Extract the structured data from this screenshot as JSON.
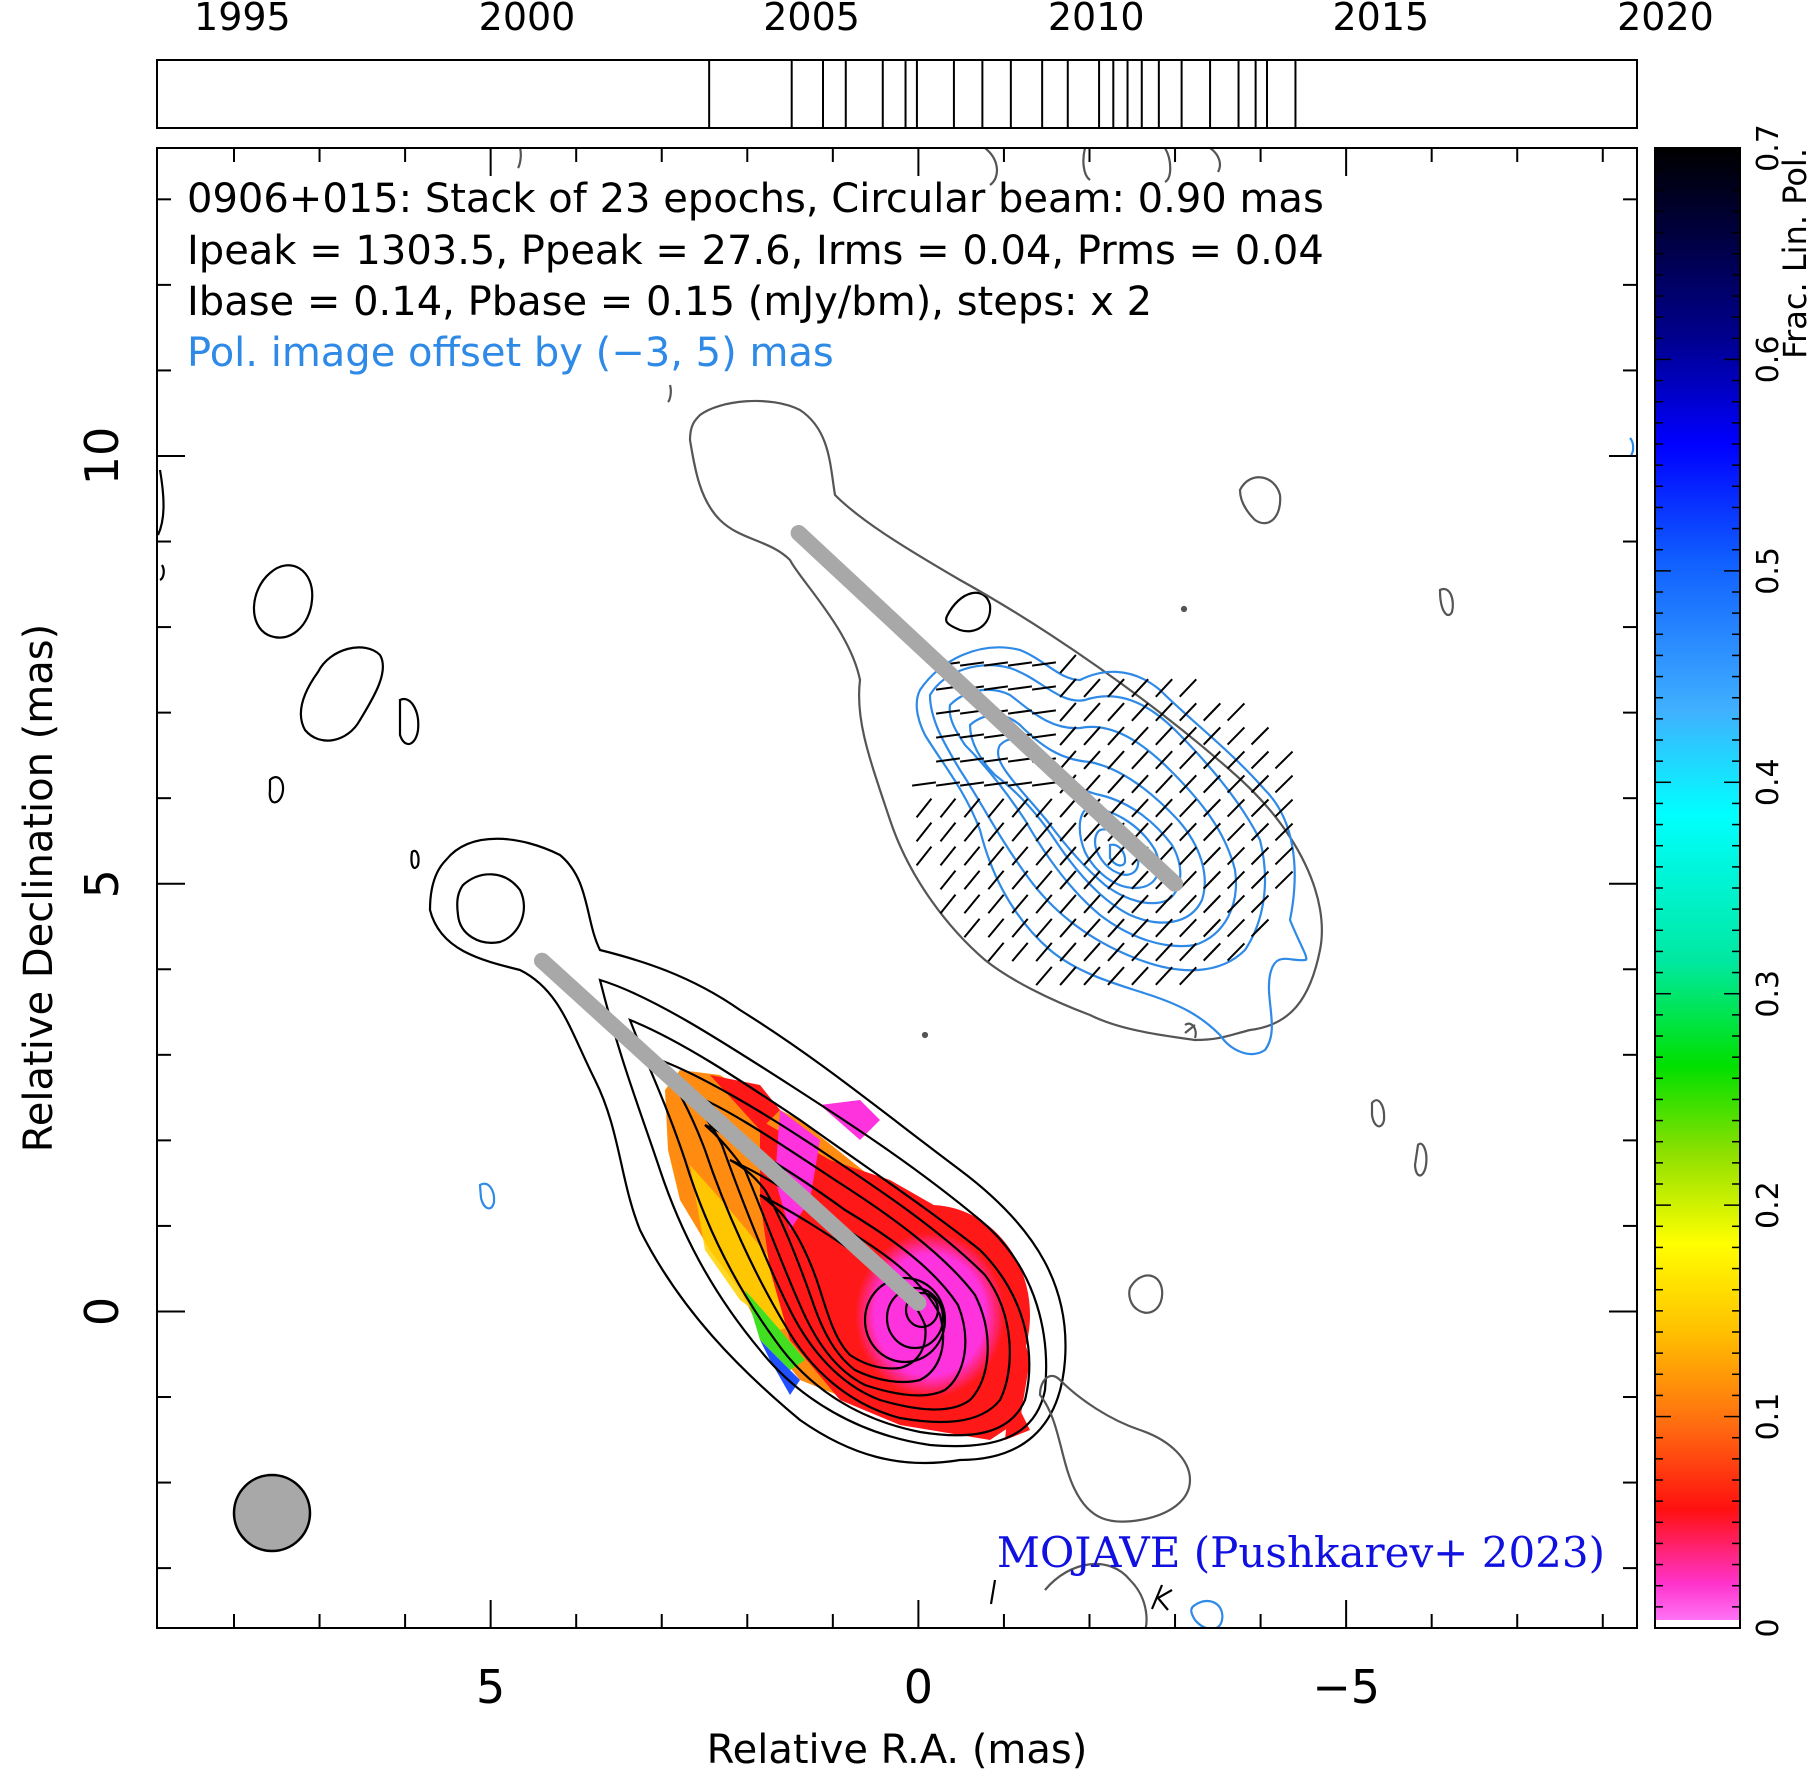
{
  "chart_data": {
    "type": "contour",
    "source": "0906+015",
    "annotations": [
      "0906+015: Stack of 23 epochs, Circular beam: 0.90 mas",
      "Ipeak = 1303.5, Ppeak = 27.6, Irms = 0.04, Prms = 0.04",
      "Ibase = 0.14, Pbase = 0.15 (mJy/bm), steps: x 2",
      "Pol. image offset by (−3, 5) mas"
    ],
    "credit": "MOJAVE (Pushkarev+ 2023)",
    "xlabel": "Relative R.A. (mas)",
    "ylabel": "Relative Declination (mas)",
    "xlim": [
      8.9,
      -8.4
    ],
    "ylim": [
      -3.7,
      13.6
    ],
    "x_ticks": [
      {
        "value": 5,
        "label": "5"
      },
      {
        "value": 0,
        "label": "0"
      },
      {
        "value": -5,
        "label": "−5"
      }
    ],
    "y_ticks": [
      {
        "value": 10,
        "label": "10"
      },
      {
        "value": 5,
        "label": "5"
      },
      {
        "value": 0,
        "label": "0"
      }
    ],
    "beam_diameter_mas": 0.9,
    "jet_axis": {
      "x": [
        4.4,
        0.0
      ],
      "y": [
        4.1,
        0.1
      ]
    },
    "pol_jet_axis": {
      "x": [
        1.4,
        -3.0
      ],
      "y": [
        9.1,
        5.0
      ]
    },
    "timeline": {
      "years": [
        1995,
        2000,
        2005,
        2010,
        2015,
        2020
      ],
      "range": [
        1993.5,
        2019.5
      ],
      "epochs": [
        2003.2,
        2004.65,
        2005.2,
        2005.6,
        2006.25,
        2006.65,
        2006.85,
        2007.5,
        2008.0,
        2008.5,
        2009.05,
        2009.5,
        2010.05,
        2010.3,
        2010.55,
        2010.8,
        2011.1,
        2011.5,
        2012.0,
        2012.5,
        2012.8,
        2013.0,
        2013.5
      ]
    },
    "colorbar": {
      "label": "Frac. Lin. Pol.",
      "range": [
        0,
        0.7
      ],
      "ticks": [
        "0",
        "0.1",
        "0.2",
        "0.3",
        "0.4",
        "0.5",
        "0.6",
        "0.7"
      ]
    }
  },
  "colors": {
    "total_intensity": "#000000",
    "noise_contours": "#555555",
    "polarized_intensity": "#2e8ae6",
    "annotation_pol": "#2e8ae6",
    "credit": "#1010e0",
    "jet_ridge": "#a8a8a8",
    "beam": "#a8a8a8"
  }
}
